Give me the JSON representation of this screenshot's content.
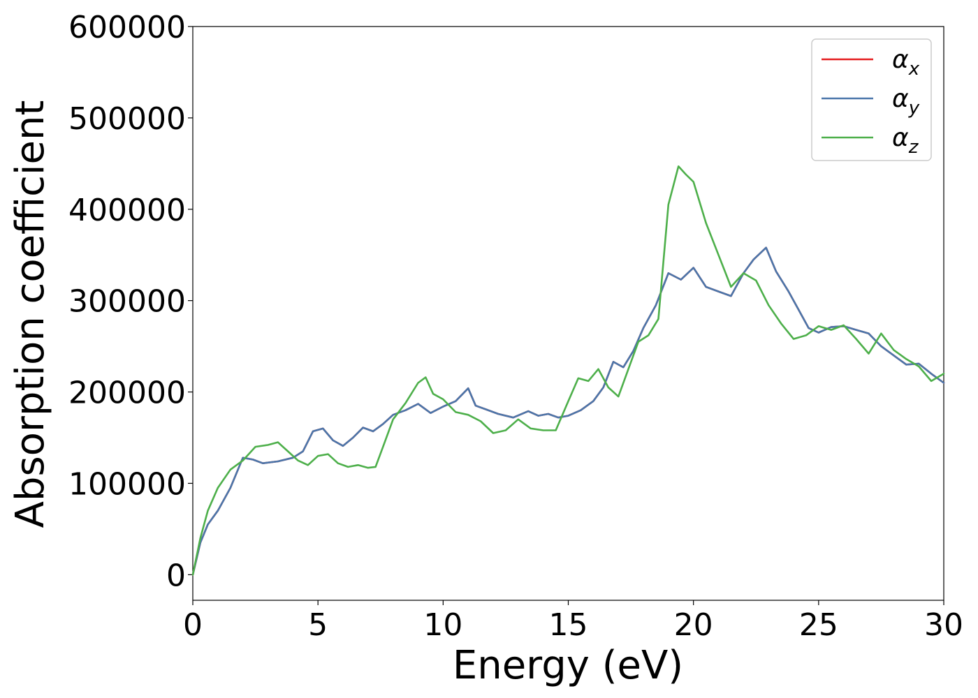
{
  "chart_data": {
    "type": "line",
    "xlabel": "Energy (eV)",
    "ylabel": "Absorption coefficient",
    "xlim": [
      0,
      30
    ],
    "ylim": [
      -28000,
      600000
    ],
    "xticks": [
      0,
      5,
      10,
      15,
      20,
      25,
      30
    ],
    "yticks": [
      0,
      100000,
      200000,
      300000,
      400000,
      500000,
      600000
    ],
    "grid": false,
    "legend_position": "top-right",
    "series": [
      {
        "name": "x",
        "legend_base": "α",
        "legend_sub": "x",
        "color": "#e41a1c",
        "x": [
          0,
          0.3,
          0.6,
          1.0,
          1.5,
          2.0,
          2.4,
          2.8,
          3.4,
          4.0,
          4.4,
          4.8,
          5.2,
          5.6,
          6.0,
          6.4,
          6.8,
          7.2,
          7.6,
          8.0,
          8.5,
          9.0,
          9.5,
          10.0,
          10.5,
          11.0,
          11.3,
          11.7,
          12.2,
          12.8,
          13.4,
          13.8,
          14.2,
          14.6,
          15.0,
          15.5,
          16.0,
          16.4,
          16.8,
          17.2,
          17.6,
          18.0,
          18.5,
          19.0,
          19.5,
          20.0,
          20.5,
          21.0,
          21.5,
          22.0,
          22.4,
          22.9,
          23.3,
          23.8,
          24.2,
          24.6,
          25.0,
          25.5,
          26.0,
          26.5,
          27.0,
          27.5,
          28.0,
          28.5,
          29.0,
          29.5,
          30.0
        ],
        "y": [
          0,
          35000,
          55000,
          70000,
          95000,
          128000,
          126000,
          122000,
          124000,
          128000,
          135000,
          157000,
          160000,
          147000,
          141000,
          150000,
          161000,
          157000,
          165000,
          175000,
          180000,
          187000,
          177000,
          184000,
          190000,
          204000,
          185000,
          181000,
          176000,
          172000,
          179000,
          174000,
          176000,
          172000,
          174000,
          180000,
          190000,
          205000,
          233000,
          227000,
          245000,
          270000,
          295000,
          330000,
          323000,
          336000,
          315000,
          310000,
          305000,
          330000,
          345000,
          358000,
          332000,
          310000,
          290000,
          270000,
          265000,
          271000,
          272000,
          268000,
          264000,
          250000,
          240000,
          230000,
          231000,
          220000,
          210000
        ]
      },
      {
        "name": "y",
        "legend_base": "α",
        "legend_sub": "y",
        "color": "#4a76aa",
        "x": [
          0,
          0.3,
          0.6,
          1.0,
          1.5,
          2.0,
          2.4,
          2.8,
          3.4,
          4.0,
          4.4,
          4.8,
          5.2,
          5.6,
          6.0,
          6.4,
          6.8,
          7.2,
          7.6,
          8.0,
          8.5,
          9.0,
          9.5,
          10.0,
          10.5,
          11.0,
          11.3,
          11.7,
          12.2,
          12.8,
          13.4,
          13.8,
          14.2,
          14.6,
          15.0,
          15.5,
          16.0,
          16.4,
          16.8,
          17.2,
          17.6,
          18.0,
          18.5,
          19.0,
          19.5,
          20.0,
          20.5,
          21.0,
          21.5,
          22.0,
          22.4,
          22.9,
          23.3,
          23.8,
          24.2,
          24.6,
          25.0,
          25.5,
          26.0,
          26.5,
          27.0,
          27.5,
          28.0,
          28.5,
          29.0,
          29.5,
          30.0
        ],
        "y": [
          0,
          35000,
          55000,
          70000,
          95000,
          128000,
          126000,
          122000,
          124000,
          128000,
          135000,
          157000,
          160000,
          147000,
          141000,
          150000,
          161000,
          157000,
          165000,
          175000,
          180000,
          187000,
          177000,
          184000,
          190000,
          204000,
          185000,
          181000,
          176000,
          172000,
          179000,
          174000,
          176000,
          172000,
          174000,
          180000,
          190000,
          205000,
          233000,
          227000,
          245000,
          270000,
          295000,
          330000,
          323000,
          336000,
          315000,
          310000,
          305000,
          330000,
          345000,
          358000,
          332000,
          310000,
          290000,
          270000,
          265000,
          271000,
          272000,
          268000,
          264000,
          250000,
          240000,
          230000,
          231000,
          220000,
          210000
        ]
      },
      {
        "name": "z",
        "legend_base": "α",
        "legend_sub": "z",
        "color": "#4daf4a",
        "x": [
          0,
          0.3,
          0.6,
          1.0,
          1.5,
          2.0,
          2.5,
          3.0,
          3.4,
          3.8,
          4.2,
          4.6,
          5.0,
          5.4,
          5.8,
          6.2,
          6.6,
          7.0,
          7.3,
          7.6,
          8.0,
          8.5,
          9.0,
          9.3,
          9.6,
          10.0,
          10.5,
          11.0,
          11.5,
          12.0,
          12.5,
          13.0,
          13.5,
          14.0,
          14.5,
          15.0,
          15.4,
          15.8,
          16.2,
          16.6,
          17.0,
          17.4,
          17.8,
          18.2,
          18.6,
          19.0,
          19.4,
          19.7,
          20.0,
          20.5,
          21.0,
          21.5,
          22.0,
          22.5,
          23.0,
          23.5,
          24.0,
          24.5,
          25.0,
          25.5,
          26.0,
          26.5,
          27.0,
          27.5,
          28.0,
          28.5,
          29.0,
          29.5,
          30.0
        ],
        "y": [
          0,
          40000,
          70000,
          95000,
          115000,
          125000,
          140000,
          142000,
          145000,
          135000,
          125000,
          120000,
          130000,
          132000,
          122000,
          118000,
          120000,
          117000,
          118000,
          140000,
          170000,
          188000,
          210000,
          216000,
          198000,
          192000,
          178000,
          175000,
          168000,
          155000,
          158000,
          170000,
          160000,
          158000,
          158000,
          190000,
          215000,
          212000,
          225000,
          205000,
          195000,
          225000,
          255000,
          262000,
          280000,
          405000,
          447000,
          438000,
          430000,
          385000,
          350000,
          315000,
          330000,
          322000,
          295000,
          275000,
          258000,
          262000,
          272000,
          268000,
          273000,
          258000,
          242000,
          264000,
          246000,
          236000,
          228000,
          212000,
          220000
        ]
      }
    ]
  }
}
